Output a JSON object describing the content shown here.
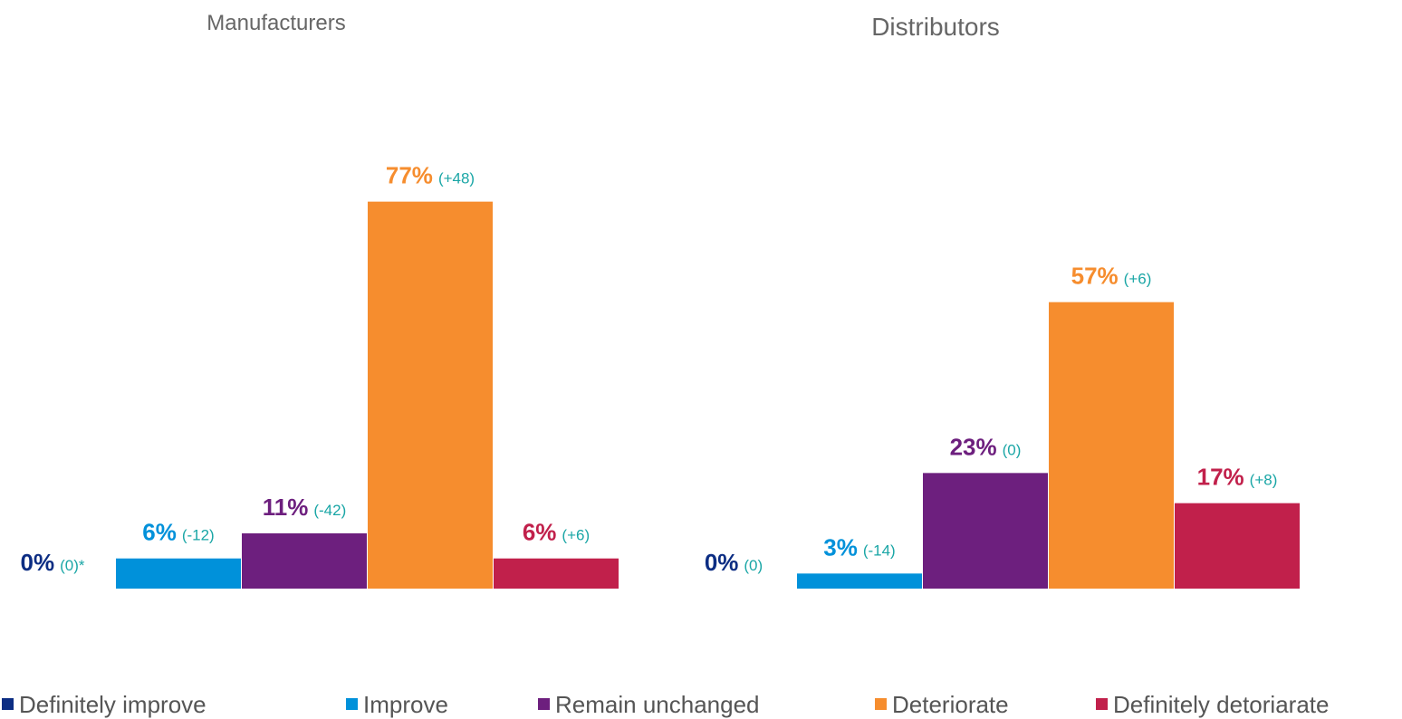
{
  "chart_data": [
    {
      "type": "bar",
      "title": "Manufacturers",
      "values": [
        0,
        6,
        11,
        77,
        6
      ],
      "value_labels": [
        "0%",
        "6%",
        "11%",
        "77%",
        "6%"
      ],
      "annotations": [
        "(0)*",
        "(-12)",
        "(-42)",
        "(+48)",
        "(+6)"
      ],
      "ylim": [
        0,
        100
      ]
    },
    {
      "type": "bar",
      "title": "Distributors",
      "values": [
        0,
        3,
        23,
        57,
        17
      ],
      "value_labels": [
        "0%",
        "3%",
        "23%",
        "57%",
        "17%"
      ],
      "annotations": [
        "(0)",
        "(-14)",
        "(0)",
        "(+6)",
        "(+8)"
      ],
      "ylim": [
        0,
        100
      ]
    }
  ],
  "legend": [
    {
      "name": "Definitely improve",
      "color": "#0c2d83"
    },
    {
      "name": "Improve",
      "color": "#0091da"
    },
    {
      "name": "Remain unchanged",
      "color": "#6d1f7e"
    },
    {
      "name": "Deteriorate",
      "color": "#f68d2e"
    },
    {
      "name": "Definitely detoriarate",
      "color": "#c1204b"
    }
  ]
}
